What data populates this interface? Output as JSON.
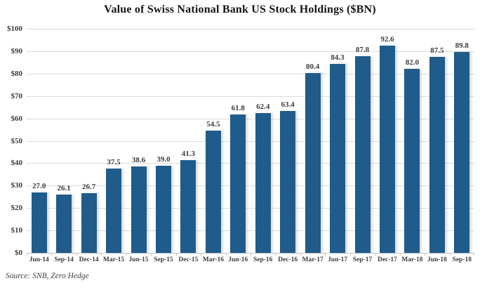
{
  "chart_data": {
    "type": "bar",
    "title": "Value of Swiss National Bank US Stock Holdings ($BN)",
    "categories": [
      "Jun-14",
      "Sep-14",
      "Dec-14",
      "Mar-15",
      "Jun-15",
      "Sep-15",
      "Dec-15",
      "Mar-16",
      "Jun-16",
      "Sep-16",
      "Dec-16",
      "Mar-17",
      "Jun-17",
      "Sep-17",
      "Dec-17",
      "Mar-18",
      "Jun-18",
      "Sep-18"
    ],
    "values": [
      27.0,
      26.1,
      26.7,
      37.5,
      38.6,
      39.0,
      41.3,
      54.5,
      61.8,
      62.4,
      63.4,
      80.4,
      84.3,
      87.8,
      92.6,
      82.0,
      87.5,
      89.8
    ],
    "value_labels": [
      "27.0",
      "26.1",
      "26.7",
      "37.5",
      "38.6",
      "39.0",
      "41.3",
      "54.5",
      "61.8",
      "62.4",
      "63.4",
      "80.4",
      "84.3",
      "87.8",
      "92.6",
      "82.0",
      "87.5",
      "89.8"
    ],
    "xlabel": "",
    "ylabel": "",
    "ylim": [
      0,
      100
    ],
    "ytick_step": 10,
    "ytick_labels": [
      "$0",
      "$10",
      "$20",
      "$30",
      "$40",
      "$50",
      "$60",
      "$70",
      "$80",
      "$90",
      "$100"
    ],
    "grid": true,
    "legend": false,
    "bar_color": "#1f5c8b",
    "gridline_color": "#dcdcdc",
    "label_color": "#3d3d3d"
  },
  "source_note": "Source: SNB, Zero Hedge"
}
